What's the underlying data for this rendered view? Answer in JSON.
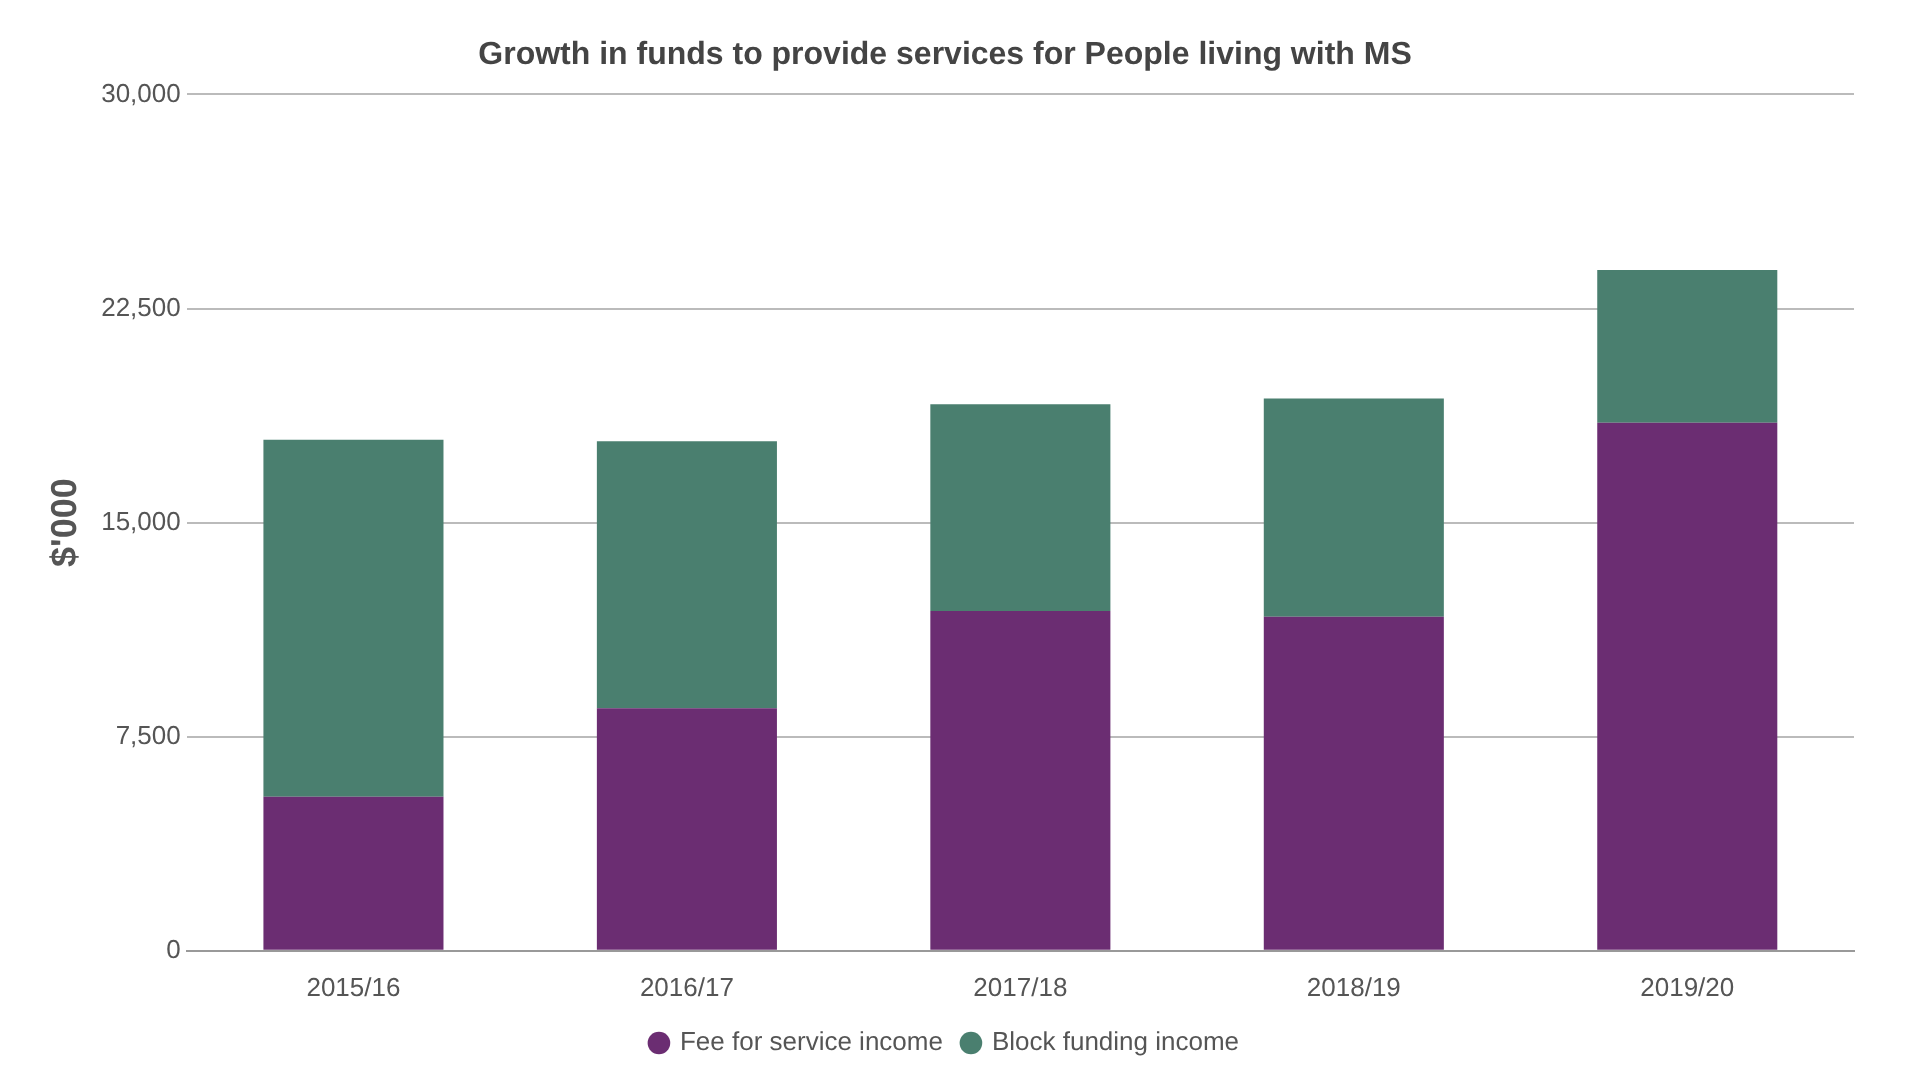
{
  "chart_data": {
    "type": "bar",
    "title": "Growth in funds to provide services for People living with MS",
    "ylabel": "$'000",
    "categories": [
      "2015/16",
      "2016/17",
      "2017/18",
      "2018/19",
      "2019/20"
    ],
    "series": [
      {
        "name": "Fee for service income",
        "color": "#6b2d72",
        "values": [
          5400,
          8500,
          11900,
          11700,
          18500
        ]
      },
      {
        "name": "Block funding income",
        "color": "#4a7f6f",
        "values": [
          12500,
          9350,
          7250,
          7650,
          5350
        ]
      }
    ],
    "stacked": true,
    "ylim": [
      0,
      30000
    ],
    "yticks": [
      {
        "value": 0,
        "label": "0"
      },
      {
        "value": 7500,
        "label": "7,500"
      },
      {
        "value": 15000,
        "label": "15,000"
      },
      {
        "value": 22500,
        "label": "22,500"
      },
      {
        "value": 30000,
        "label": "30,000"
      }
    ],
    "grid": "y",
    "legend": "bottom"
  }
}
